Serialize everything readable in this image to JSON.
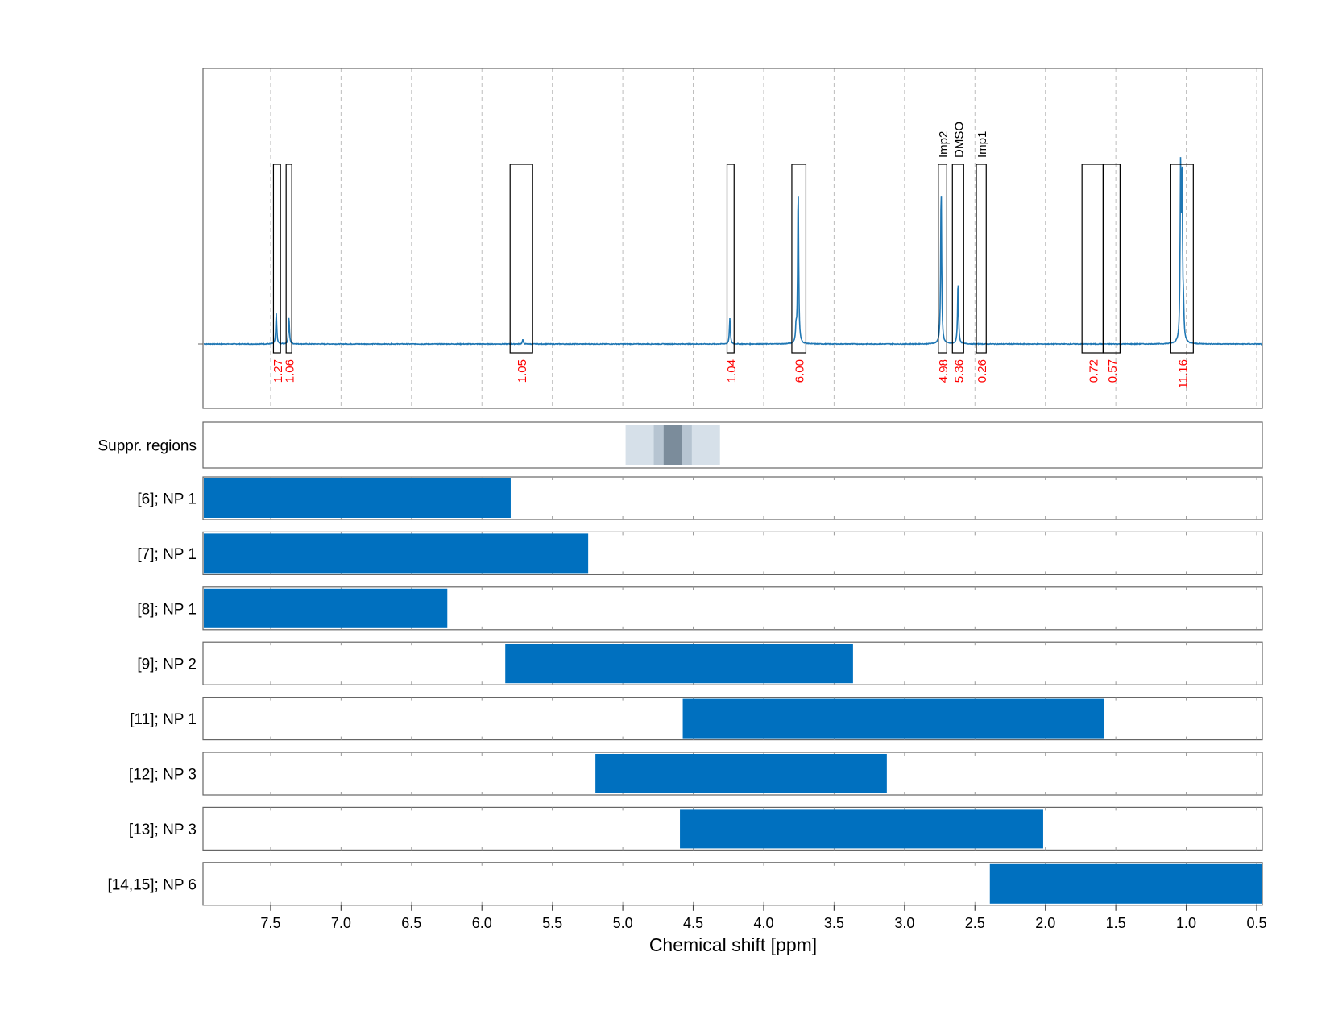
{
  "chart_data": {
    "type": "nmr-spectrum-with-range-bars",
    "x_axis": {
      "label": "Chemical shift [ppm]",
      "reversed": true,
      "lim": [
        7.98,
        0.46
      ],
      "ticks": [
        "7.5",
        "7.0",
        "6.5",
        "6.0",
        "5.5",
        "5.0",
        "4.5",
        "4.0",
        "3.5",
        "3.0",
        "2.5",
        "2.0",
        "1.5",
        "1.0",
        "0.5"
      ]
    },
    "spectrum": {
      "color": "#1f77b4",
      "peaks": [
        {
          "ppm": 7.46,
          "height": 0.17
        },
        {
          "ppm": 7.37,
          "height": 0.15
        },
        {
          "ppm": 5.71,
          "height": 0.025
        },
        {
          "ppm": 4.24,
          "height": 0.14
        },
        {
          "ppm": 3.77,
          "height": 0.08
        },
        {
          "ppm": 3.755,
          "height": 0.87
        },
        {
          "ppm": 2.74,
          "height": 0.88
        },
        {
          "ppm": 2.62,
          "height": 0.35
        },
        {
          "ppm": 1.04,
          "height": 0.92
        },
        {
          "ppm": 1.03,
          "height": 0.9
        },
        {
          "ppm": 1.02,
          "height": 0.14
        }
      ]
    },
    "integration_regions": [
      {
        "from": 7.48,
        "to": 7.43,
        "integral": "1.27",
        "label": ""
      },
      {
        "from": 7.39,
        "to": 7.35,
        "integral": "1.06",
        "label": ""
      },
      {
        "from": 5.8,
        "to": 5.64,
        "integral": "1.05",
        "label": ""
      },
      {
        "from": 4.26,
        "to": 4.21,
        "integral": "1.04",
        "label": ""
      },
      {
        "from": 3.8,
        "to": 3.7,
        "integral": "6.00",
        "label": ""
      },
      {
        "from": 2.76,
        "to": 2.7,
        "integral": "4.98",
        "label": "Imp2"
      },
      {
        "from": 2.66,
        "to": 2.58,
        "integral": "5.36",
        "label": "DMSO"
      },
      {
        "from": 2.49,
        "to": 2.42,
        "integral": "0.26",
        "label": "Imp1"
      },
      {
        "from": 1.74,
        "to": 1.59,
        "integral": "0.72",
        "label": ""
      },
      {
        "from": 1.59,
        "to": 1.47,
        "integral": "0.57",
        "label": ""
      },
      {
        "from": 1.11,
        "to": 0.95,
        "integral": "11.16",
        "label": ""
      }
    ],
    "suppression_panel": {
      "label": "Suppr. regions",
      "regions": [
        {
          "from": 4.98,
          "to": 4.31,
          "color": "#d6e0e9"
        },
        {
          "from": 4.78,
          "to": 4.51,
          "color": "#b6c4d1"
        },
        {
          "from": 4.71,
          "to": 4.58,
          "color": "#7b8c9b"
        }
      ]
    },
    "range_series": [
      {
        "name": "[6]; NP 1",
        "from": 7.98,
        "to": 5.79
      },
      {
        "name": "[7]; NP 1",
        "from": 7.98,
        "to": 5.24
      },
      {
        "name": "[8]; NP 1",
        "from": 7.98,
        "to": 6.24
      },
      {
        "name": "[9]; NP 2",
        "from": 5.84,
        "to": 3.36
      },
      {
        "name": "[11]; NP 1",
        "from": 4.58,
        "to": 1.58
      },
      {
        "name": "[12]; NP 3",
        "from": 5.2,
        "to": 3.12
      },
      {
        "name": "[13]; NP 3",
        "from": 4.6,
        "to": 2.01
      },
      {
        "name": "[14,15]; NP 6",
        "from": 2.4,
        "to": 0.46
      }
    ],
    "colors": {
      "bar": "#0070bf",
      "integral_text": "#ff0000",
      "grid": "#bdbdbd",
      "frame": "#555555"
    }
  }
}
